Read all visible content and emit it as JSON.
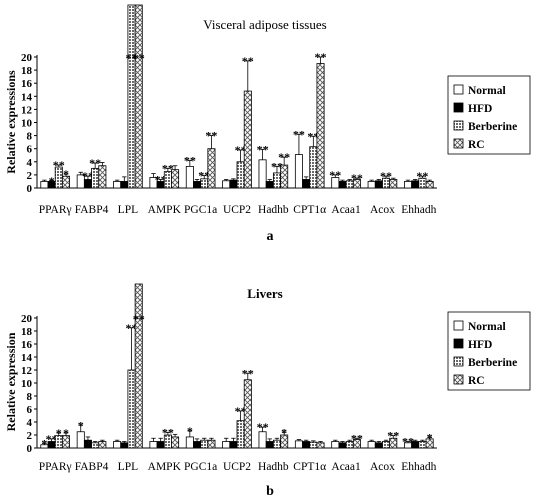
{
  "figure": {
    "panel_labels": [
      "a",
      "b"
    ]
  },
  "colors": {
    "normal": "#ffffff",
    "hfd": "#000000",
    "berberine": "#bdbdbd",
    "rc": "#e4e4e4",
    "stroke": "#000000"
  },
  "chart_data": [
    {
      "type": "bar",
      "title": "Visceral adipose tissues",
      "panel_label": "a",
      "ylabel": "Relative expressions",
      "ylim": [
        0,
        20
      ],
      "yticks": [
        0,
        2,
        4,
        6,
        8,
        10,
        12,
        14,
        16,
        18,
        20
      ],
      "grid": false,
      "legend_position": "right",
      "categories": [
        "PPARγ",
        "FABP4",
        "LPL",
        "AMPK",
        "PGC1a",
        "UCP2",
        "Hadhb",
        "CPT1α",
        "Acaa1",
        "Acox",
        "Ehhadh"
      ],
      "series": [
        {
          "name": "Normal",
          "values": [
            1,
            2,
            1,
            1.6,
            3.3,
            1.1,
            4.3,
            5.1,
            1.6,
            1,
            1
          ],
          "errors": [
            0.2,
            0.4,
            0.2,
            0.6,
            0.9,
            0.2,
            1.6,
            3.1,
            0.4,
            0.2,
            0.2
          ]
        },
        {
          "name": "HFD",
          "values": [
            1,
            1.3,
            1,
            1,
            1,
            1.2,
            1,
            1.3,
            1,
            1.1,
            1.1
          ],
          "errors": [
            0.1,
            0.5,
            0.7,
            0.3,
            0.3,
            0.2,
            0.3,
            0.4,
            0.2,
            0.2,
            0.2
          ]
        },
        {
          "name": "Berberine",
          "values": [
            3.2,
            3,
            20,
            2.5,
            1.4,
            4,
            2.3,
            6.3,
            1.1,
            1.5,
            1.5
          ],
          "errors": [
            0.3,
            0.8,
            0,
            0.5,
            0.5,
            1.8,
            1,
            1.6,
            0.2,
            0.3,
            0.3
          ]
        },
        {
          "name": "RC",
          "values": [
            1.8,
            3.4,
            20,
            2.8,
            6,
            14.8,
            3.5,
            19,
            1.3,
            1.3,
            1
          ],
          "errors": [
            0.3,
            0.5,
            0,
            0.6,
            2,
            4.6,
            1.2,
            1,
            0.2,
            0.2,
            0.2
          ]
        }
      ],
      "significance": [
        [
          "",
          "*",
          "**",
          "*"
        ],
        [
          "",
          "**",
          "**",
          ""
        ],
        [
          "",
          "",
          "**",
          "**"
        ],
        [
          "",
          "**",
          "**",
          ""
        ],
        [
          "**",
          "",
          "**",
          "**"
        ],
        [
          "",
          "",
          "**",
          "**"
        ],
        [
          "**",
          "",
          "**",
          "**"
        ],
        [
          "**",
          "",
          "**",
          "**"
        ],
        [
          "**",
          "",
          "",
          "**"
        ],
        [
          "",
          "",
          "**",
          ""
        ],
        [
          "",
          "",
          "**",
          ""
        ]
      ]
    },
    {
      "type": "bar",
      "title": "Livers",
      "panel_label": "b",
      "ylabel": "Relative expression",
      "ylim": [
        0,
        20
      ],
      "yticks": [
        0,
        2,
        4,
        6,
        8,
        10,
        12,
        14,
        16,
        18,
        20
      ],
      "grid": false,
      "legend_position": "right",
      "categories": [
        "PPARγ",
        "FABP4",
        "LPL",
        "AMPK",
        "PGC1a",
        "UCP2",
        "Hadhb",
        "CPT1α",
        "Acaa1",
        "Acox",
        "Ehhadh"
      ],
      "series": [
        {
          "name": "Normal",
          "values": [
            0.5,
            2.5,
            1,
            1,
            1.7,
            1,
            2.5,
            1.1,
            1,
            1,
            0.8
          ],
          "errors": [
            0.2,
            1,
            0.2,
            0.5,
            0.9,
            0.5,
            0.7,
            0.2,
            0.2,
            0.2,
            0.2
          ]
        },
        {
          "name": "HFD",
          "values": [
            1,
            1.2,
            0.8,
            1,
            1,
            1,
            1,
            1,
            0.8,
            0.8,
            1
          ],
          "errors": [
            0.4,
            0.5,
            0.2,
            0.5,
            0.4,
            0.5,
            0.4,
            0.2,
            0.2,
            0.2,
            0.2
          ]
        },
        {
          "name": "Berberine",
          "values": [
            1.9,
            0.8,
            12,
            2,
            1.2,
            4.2,
            1.2,
            0.9,
            1,
            1,
            1
          ],
          "errors": [
            0.4,
            0.2,
            6.5,
            0.4,
            0.3,
            1.5,
            0.3,
            0.2,
            0.2,
            0.2,
            0.2
          ]
        },
        {
          "name": "RC",
          "values": [
            1.9,
            1,
            20,
            1.7,
            1.2,
            10.5,
            2,
            0.8,
            1.3,
            1.5,
            1.4
          ],
          "errors": [
            0.4,
            0.2,
            0,
            0.4,
            0.3,
            1,
            0.4,
            0.2,
            0.2,
            0.4,
            0.2
          ]
        }
      ],
      "significance": [
        [
          "*",
          "**",
          "*",
          "*"
        ],
        [
          "*",
          "",
          "",
          ""
        ],
        [
          "",
          "",
          "**",
          "**"
        ],
        [
          "",
          "",
          "**",
          ""
        ],
        [
          "*",
          "",
          "",
          ""
        ],
        [
          "",
          "",
          "**",
          "**"
        ],
        [
          "**",
          "",
          "",
          "*"
        ],
        [
          "",
          "",
          "",
          ""
        ],
        [
          "",
          "",
          "",
          "**"
        ],
        [
          "",
          "",
          "",
          "**"
        ],
        [
          "**",
          "",
          "",
          "*"
        ]
      ]
    }
  ]
}
